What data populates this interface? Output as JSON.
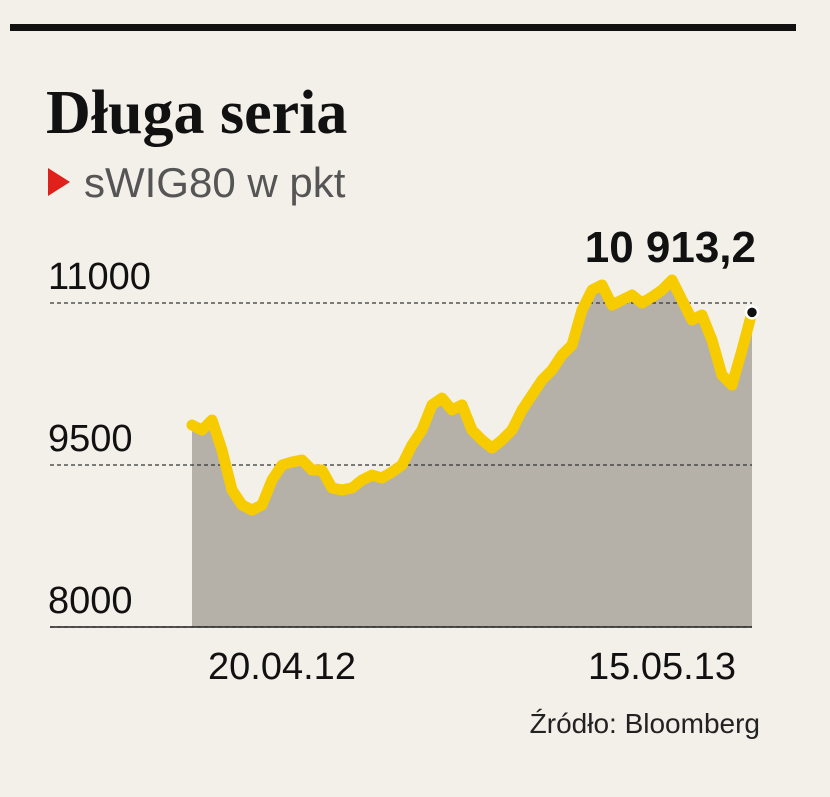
{
  "chart_data": {
    "type": "area-line",
    "title": "Długa seria",
    "subtitle": "sWIG80 w pkt",
    "source": "Źródło: Bloomberg",
    "categories": [
      null,
      null,
      null,
      null,
      null,
      null,
      null,
      null,
      null,
      "20.04.12",
      null,
      null,
      null,
      null,
      null,
      null,
      null,
      null,
      null,
      null,
      null,
      null,
      null,
      null,
      null,
      null,
      null,
      null,
      null,
      null,
      null,
      null,
      null,
      null,
      null,
      null,
      null,
      null,
      null,
      null,
      null,
      null,
      null,
      null,
      null,
      null,
      null,
      "15.05.13",
      null,
      null,
      null,
      null,
      null,
      null,
      null,
      null,
      null
    ],
    "values": [
      9870,
      9824,
      9917,
      9639,
      9269,
      9130,
      9083,
      9130,
      9361,
      9500,
      9528,
      9546,
      9454,
      9454,
      9287,
      9269,
      9287,
      9361,
      9407,
      9380,
      9435,
      9500,
      9685,
      9824,
      10056,
      10120,
      10009,
      10056,
      9824,
      9731,
      9657,
      9731,
      9824,
      10009,
      10148,
      10287,
      10380,
      10519,
      10611,
      10935,
      11120,
      11167,
      10981,
      11028,
      11074,
      11000,
      11056,
      11120,
      11213,
      11028,
      10843,
      10889,
      10657,
      10333,
      10241,
      10565,
      10913.2
    ],
    "value_labels": [
      null,
      null,
      null,
      null,
      null,
      null,
      null,
      null,
      null,
      null,
      null,
      null,
      null,
      null,
      null,
      null,
      null,
      null,
      null,
      null,
      null,
      null,
      null,
      null,
      null,
      null,
      null,
      null,
      null,
      null,
      null,
      null,
      null,
      null,
      null,
      null,
      null,
      null,
      null,
      null,
      null,
      null,
      null,
      null,
      null,
      null,
      null,
      null,
      null,
      null,
      null,
      null,
      null,
      null,
      null,
      null,
      "10 913,2"
    ],
    "color": "#f6cc00",
    "area_color": "#b5b1a9",
    "ylim": [
      8000,
      11500
    ],
    "yticks": [
      8000,
      9500,
      11000
    ],
    "grid": true
  }
}
